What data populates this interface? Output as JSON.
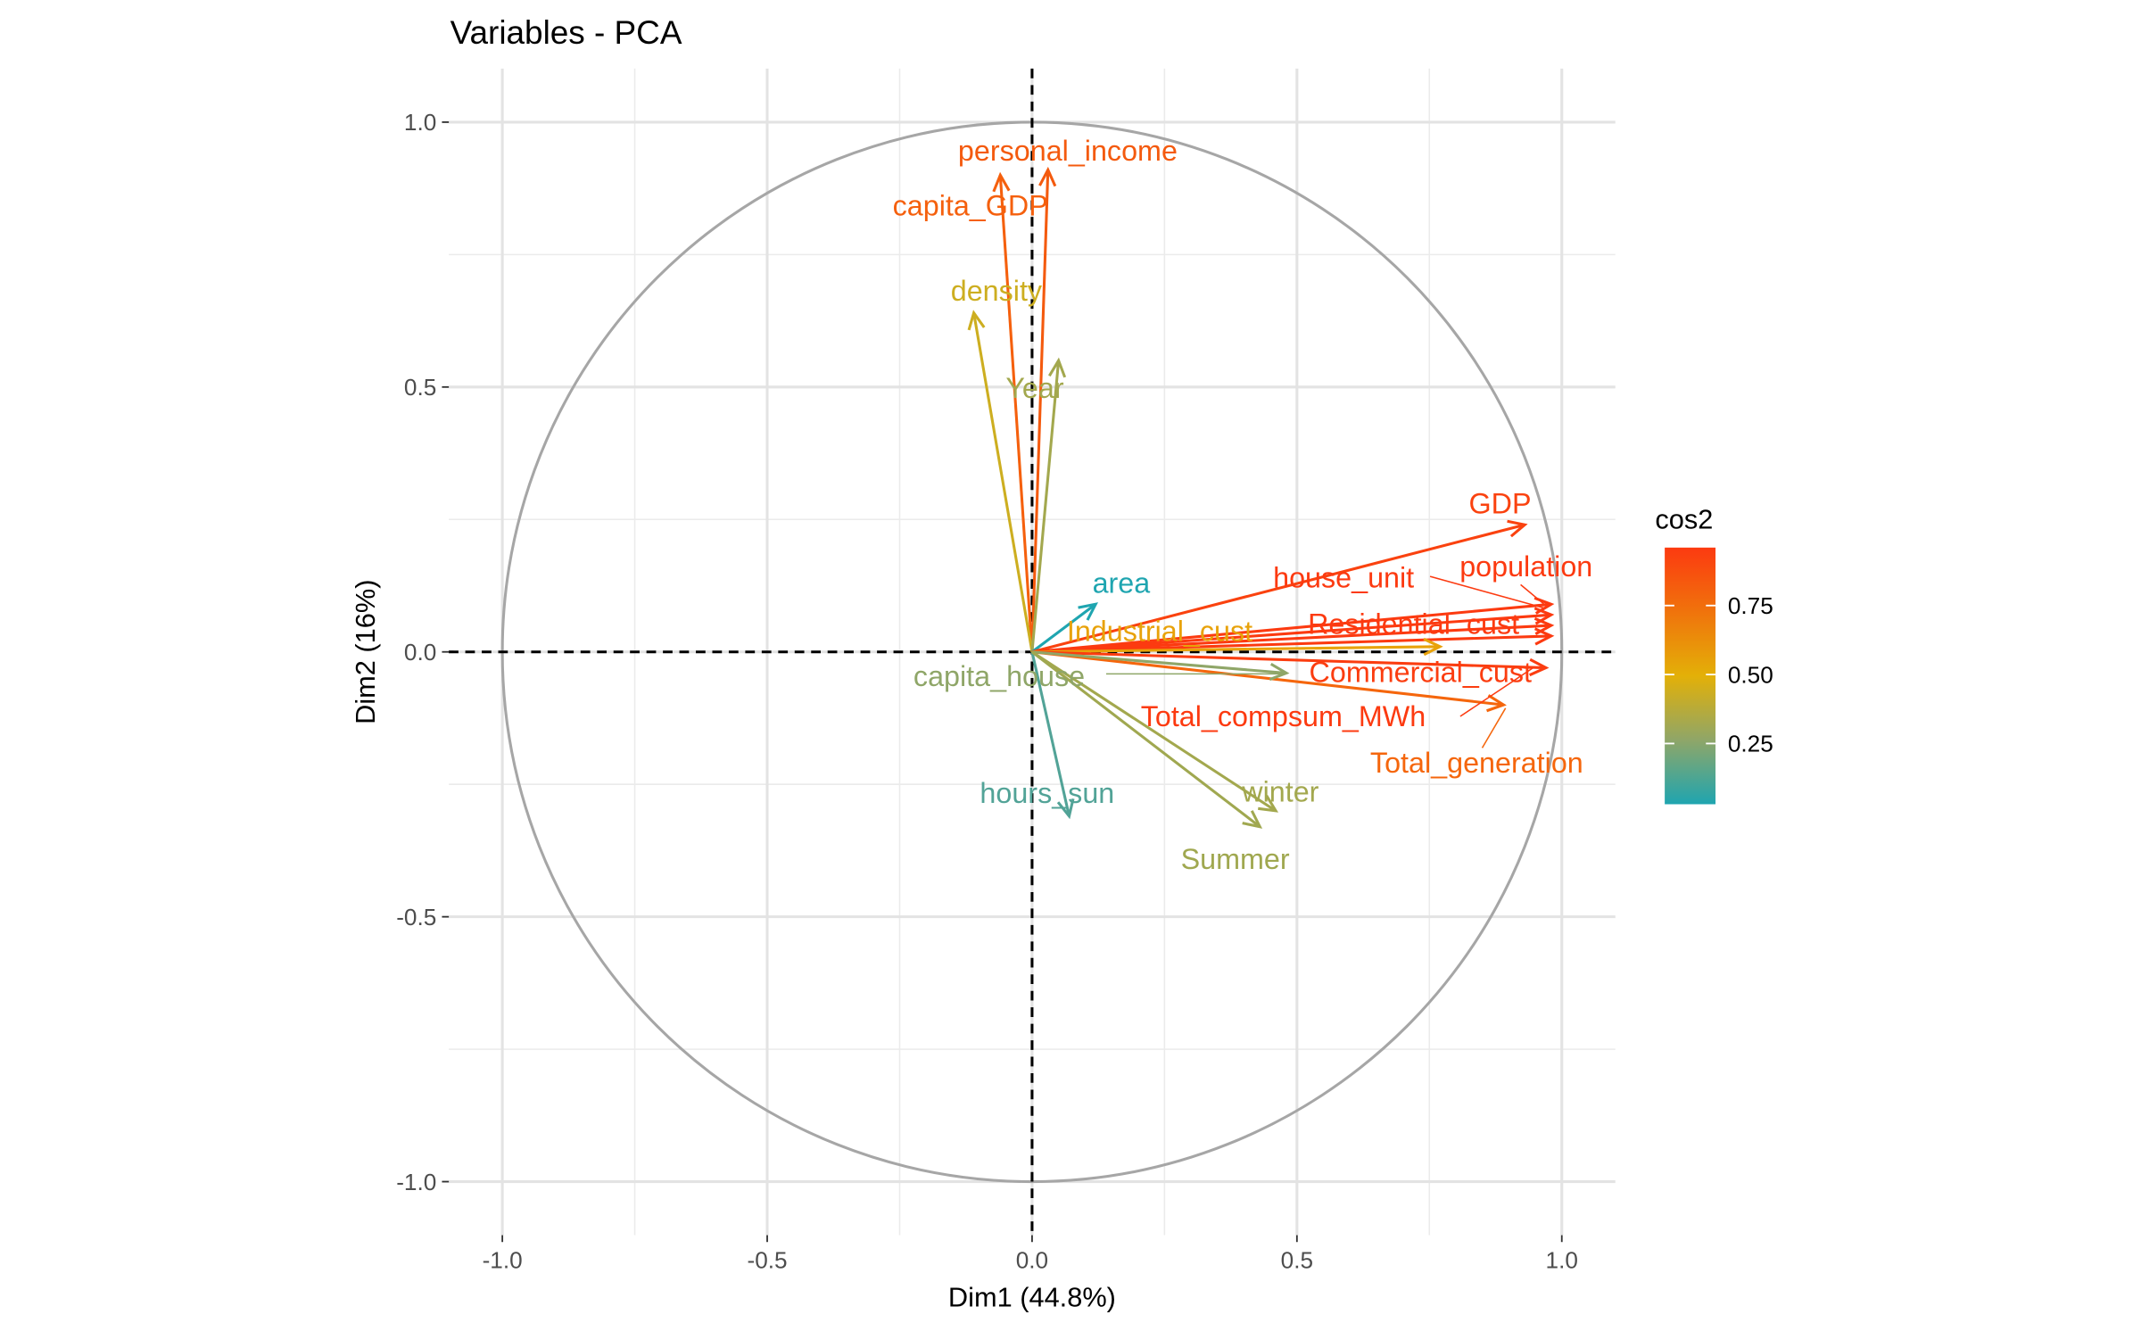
{
  "chart_data": {
    "type": "scatter",
    "subtype": "pca-variable-correlation-circle",
    "title": "Variables - PCA",
    "xlabel": "Dim1 (44.8%)",
    "ylabel": "Dim2 (16%)",
    "xlim": [
      -1.0,
      1.0
    ],
    "ylim": [
      -1.0,
      1.0
    ],
    "xticks": [
      "-1.0",
      "-0.5",
      "0.0",
      "0.5",
      "1.0"
    ],
    "yticks": [
      "-1.0",
      "-0.5",
      "0.0",
      "0.5",
      "1.0"
    ],
    "grid": true,
    "legend": {
      "title": "cos2",
      "placement": "right",
      "ticks": [
        "0.25",
        "0.50",
        "0.75"
      ],
      "tick_values": [
        0.25,
        0.5,
        0.75
      ],
      "range": [
        0.03,
        0.96
      ],
      "colors": [
        "#1FA5B0",
        "#E3B008",
        "#FC3A10"
      ]
    },
    "variables": [
      {
        "name": "personal_income",
        "x": 0.03,
        "y": 0.91,
        "cos2": 0.83,
        "color": "#F45A0E"
      },
      {
        "name": "capita_GDP",
        "x": -0.06,
        "y": 0.9,
        "cos2": 0.81,
        "color": "#F5600D"
      },
      {
        "name": "density",
        "x": -0.11,
        "y": 0.64,
        "cos2": 0.42,
        "color": "#CDAE20"
      },
      {
        "name": "Year",
        "x": 0.05,
        "y": 0.55,
        "cos2": 0.3,
        "color": "#A3A84E"
      },
      {
        "name": "area",
        "x": 0.12,
        "y": 0.09,
        "cos2": 0.03,
        "color": "#1FA5B0"
      },
      {
        "name": "GDP",
        "x": 0.93,
        "y": 0.24,
        "cos2": 0.92,
        "color": "#FA420F"
      },
      {
        "name": "population",
        "x": 0.98,
        "y": 0.09,
        "cos2": 0.96,
        "color": "#FC3A10"
      },
      {
        "name": "house_unit",
        "x": 0.98,
        "y": 0.07,
        "cos2": 0.96,
        "color": "#FC3A10"
      },
      {
        "name": "Residential_cust",
        "x": 0.98,
        "y": 0.05,
        "cos2": 0.96,
        "color": "#FC3A10"
      },
      {
        "name": "Total_compsum_MWh",
        "x": 0.98,
        "y": 0.03,
        "cos2": 0.96,
        "color": "#FC3A10"
      },
      {
        "name": "Industrial_cust",
        "x": 0.77,
        "y": 0.01,
        "cos2": 0.59,
        "color": "#E8A20A"
      },
      {
        "name": "Commercial_cust",
        "x": 0.97,
        "y": -0.03,
        "cos2": 0.94,
        "color": "#FB3D10"
      },
      {
        "name": "Total_generation",
        "x": 0.89,
        "y": -0.1,
        "cos2": 0.8,
        "color": "#F5660C"
      },
      {
        "name": "capita_house",
        "x": 0.48,
        "y": -0.04,
        "cos2": 0.23,
        "color": "#8FA668"
      },
      {
        "name": "hours_sun",
        "x": 0.07,
        "y": -0.31,
        "cos2": 0.1,
        "color": "#52A397"
      },
      {
        "name": "winter",
        "x": 0.46,
        "y": -0.3,
        "cos2": 0.3,
        "color": "#A3A84E"
      },
      {
        "name": "Summer",
        "x": 0.43,
        "y": -0.33,
        "cos2": 0.29,
        "color": "#A0A850"
      }
    ]
  }
}
